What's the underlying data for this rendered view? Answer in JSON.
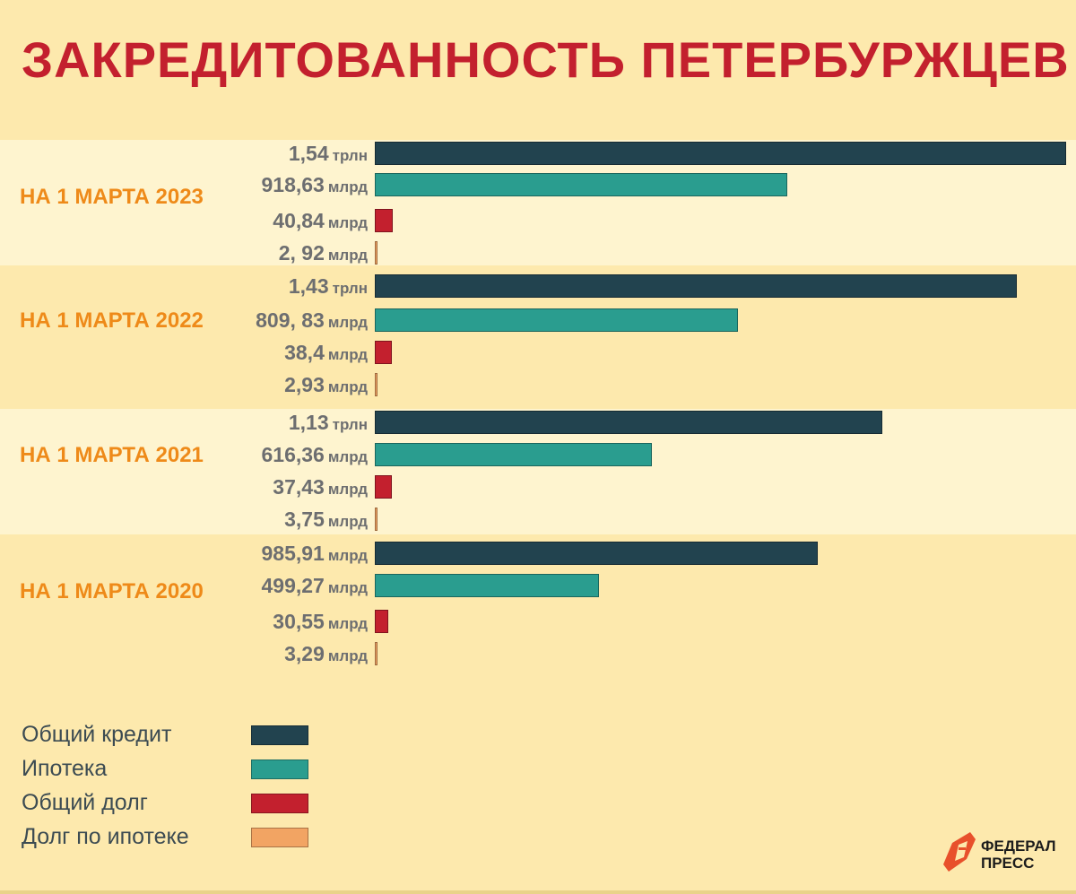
{
  "title": "ЗАКРЕДИТОВАННОСТЬ ПЕТЕРБУРЖЦЕВ",
  "colors": {
    "total_credit": "#22434f",
    "mortgage": "#2a9d8f",
    "total_debt": "#c3202e",
    "mortgage_debt": "#f2a463",
    "group_label": "#ee8a19",
    "title": "#c3202e"
  },
  "chart_data": {
    "type": "bar",
    "orientation": "horizontal",
    "title": "ЗАКРЕДИТОВАННОСТЬ ПЕТЕРБУРЖЦЕВ",
    "value_unit": "млрд руб.",
    "xlim": [
      0,
      1540
    ],
    "categories": [
      "НА 1 МАРТА 2023",
      "НА 1 МАРТА 2022",
      "НА 1 МАРТА 2021",
      "НА 1 МАРТА 2020"
    ],
    "series": [
      {
        "name": "Общий кредит",
        "values": [
          1540,
          1430,
          1130,
          985.91
        ],
        "labels": [
          [
            "1,54",
            "трлн"
          ],
          [
            "1,43",
            "трлн"
          ],
          [
            "1,13",
            "трлн"
          ],
          [
            "985,91",
            "млрд"
          ]
        ]
      },
      {
        "name": "Ипотека",
        "values": [
          918.63,
          809.83,
          616.36,
          499.27
        ],
        "labels": [
          [
            "918,63",
            "млрд"
          ],
          [
            "809, 83",
            "млрд"
          ],
          [
            "616,36",
            "млрд"
          ],
          [
            "499,27",
            "млрд"
          ]
        ]
      },
      {
        "name": "Общий долг",
        "values": [
          40.84,
          38.4,
          37.43,
          30.55
        ],
        "labels": [
          [
            "40,84",
            "млрд"
          ],
          [
            "38,4",
            "млрд"
          ],
          [
            "37,43",
            "млрд"
          ],
          [
            "30,55",
            "млрд"
          ]
        ]
      },
      {
        "name": "Долг по ипотеке",
        "values": [
          2.92,
          2.93,
          3.75,
          3.29
        ],
        "labels": [
          [
            "2, 92",
            "млрд"
          ],
          [
            "2,93",
            "млрд"
          ],
          [
            "3,75",
            "млрд"
          ],
          [
            "3,29",
            "млрд"
          ]
        ]
      }
    ]
  },
  "legend": {
    "items": [
      "Общий кредит",
      "Ипотека",
      "Общий долг",
      "Долг по ипотеке"
    ]
  },
  "logo": {
    "line1": "ФЕДЕРАЛ",
    "line2": "ПРЕСС"
  }
}
